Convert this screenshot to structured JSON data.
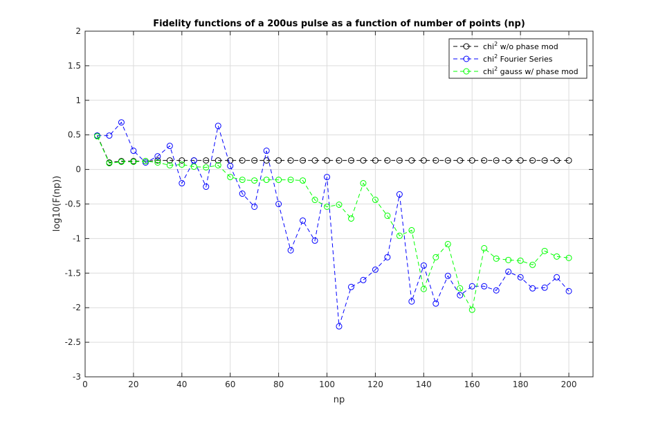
{
  "chart_data": {
    "type": "line",
    "title": "Fidelity functions of a 200us pulse as a function of number of points (np)",
    "xlabel": "np",
    "ylabel": "log10(F(np))",
    "xlim": [
      0,
      210
    ],
    "ylim": [
      -3,
      2
    ],
    "xticks": [
      "0",
      "20",
      "40",
      "60",
      "80",
      "100",
      "120",
      "140",
      "160",
      "180",
      "200"
    ],
    "yticks": [
      "-3",
      "-2.5",
      "-2",
      "-1.5",
      "-1",
      "-0.5",
      "0",
      "0.5",
      "1",
      "1.5",
      "2"
    ],
    "grid": true,
    "legend_position": "top-right",
    "x": [
      5,
      10,
      15,
      20,
      25,
      30,
      35,
      40,
      45,
      50,
      55,
      60,
      65,
      70,
      75,
      80,
      85,
      90,
      95,
      100,
      105,
      110,
      115,
      120,
      125,
      130,
      135,
      140,
      145,
      150,
      155,
      160,
      165,
      170,
      175,
      180,
      185,
      190,
      195,
      200
    ],
    "series": [
      {
        "name": "chi",
        "name_sup": "2",
        "name_rest": " w/o phase mod",
        "color": "#000000",
        "values": [
          0.49,
          0.1,
          0.12,
          0.12,
          0.12,
          0.13,
          0.13,
          0.13,
          0.13,
          0.13,
          0.13,
          0.13,
          0.13,
          0.13,
          0.13,
          0.13,
          0.13,
          0.13,
          0.13,
          0.13,
          0.13,
          0.13,
          0.13,
          0.13,
          0.13,
          0.13,
          0.13,
          0.13,
          0.13,
          0.13,
          0.13,
          0.13,
          0.13,
          0.13,
          0.13,
          0.13,
          0.13,
          0.13,
          0.13,
          0.13
        ]
      },
      {
        "name": "chi",
        "name_sup": "2",
        "name_rest": " Fourier Series",
        "color": "#0000ff",
        "values": [
          0.49,
          0.49,
          0.68,
          0.27,
          0.1,
          0.19,
          0.34,
          -0.2,
          0.13,
          -0.25,
          0.63,
          0.05,
          -0.35,
          -0.54,
          0.27,
          -0.5,
          -1.17,
          -0.74,
          -1.03,
          -0.11,
          -2.27,
          -1.7,
          -1.6,
          -1.45,
          -1.27,
          -0.36,
          -1.91,
          -1.39,
          -1.94,
          -1.54,
          -1.82,
          -1.69,
          -1.69,
          -1.75,
          -1.48,
          -1.56,
          -1.72,
          -1.71,
          -1.56,
          -1.76
        ]
      },
      {
        "name": "chi",
        "name_sup": "2",
        "name_rest": " gauss w/ phase mod",
        "color": "#00ff00",
        "values": [
          0.48,
          0.09,
          0.11,
          0.11,
          0.12,
          0.1,
          0.06,
          0.07,
          0.04,
          0.03,
          0.06,
          -0.11,
          -0.15,
          -0.16,
          -0.15,
          -0.15,
          -0.15,
          -0.16,
          -0.44,
          -0.54,
          -0.51,
          -0.71,
          -0.2,
          -0.44,
          -0.67,
          -0.96,
          -0.88,
          -1.73,
          -1.27,
          -1.08,
          -1.72,
          -2.03,
          -1.14,
          -1.29,
          -1.31,
          -1.32,
          -1.38,
          -1.18,
          -1.26,
          -1.28
        ]
      }
    ]
  }
}
